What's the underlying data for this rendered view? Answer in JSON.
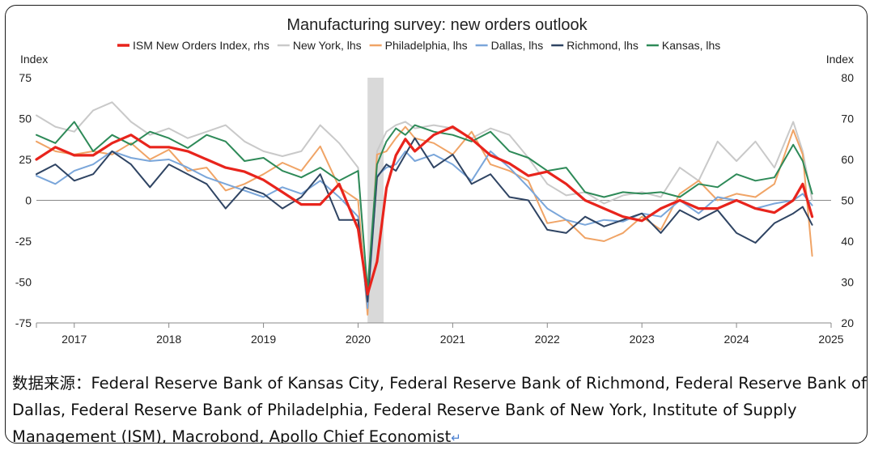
{
  "chart_data": {
    "type": "line",
    "title": "Manufacturing survey: new orders outlook",
    "left_axis": {
      "label": "Index",
      "range": [
        -75,
        75
      ],
      "ticks": [
        "75",
        "50",
        "25",
        "0",
        "-25",
        "-50",
        "-75"
      ],
      "tick_values": [
        75,
        50,
        25,
        0,
        -25,
        -50,
        -75
      ]
    },
    "right_axis": {
      "label": "Index",
      "range": [
        20,
        80
      ],
      "ticks": [
        "80",
        "70",
        "60",
        "50",
        "40",
        "30",
        "20"
      ],
      "tick_values": [
        80,
        70,
        60,
        50,
        40,
        30,
        20
      ]
    },
    "x_ticks": [
      "2017",
      "2018",
      "2019",
      "2020",
      "2021",
      "2022",
      "2023",
      "2024",
      "2025"
    ],
    "x_range": [
      2016.6,
      2025.0
    ],
    "recession_band": [
      2020.1,
      2020.27
    ],
    "grid": false,
    "zero_line": true,
    "legend": {
      "placement": "top"
    },
    "series": [
      {
        "name": "ISM New Orders Index, rhs",
        "axis": "right",
        "color": "#e8241c",
        "width": 3.2,
        "x": [
          2016.6,
          2016.8,
          2017.0,
          2017.2,
          2017.4,
          2017.6,
          2017.8,
          2018.0,
          2018.2,
          2018.4,
          2018.6,
          2018.8,
          2019.0,
          2019.2,
          2019.4,
          2019.6,
          2019.8,
          2020.0,
          2020.1,
          2020.2,
          2020.3,
          2020.4,
          2020.5,
          2020.6,
          2020.8,
          2021.0,
          2021.2,
          2021.4,
          2021.6,
          2021.8,
          2022.0,
          2022.2,
          2022.4,
          2022.6,
          2022.8,
          2023.0,
          2023.2,
          2023.4,
          2023.6,
          2023.8,
          2024.0,
          2024.2,
          2024.4,
          2024.6,
          2024.7,
          2024.8
        ],
        "y": [
          60,
          63,
          61,
          61,
          64,
          66,
          63,
          63,
          62,
          60,
          58,
          57,
          55,
          52,
          49,
          49,
          54,
          43,
          27,
          35,
          53,
          61,
          65,
          62,
          66,
          68,
          65,
          61,
          59,
          56,
          57,
          54,
          50,
          48,
          46,
          45,
          48,
          50,
          48,
          48,
          50,
          48,
          47,
          50,
          54,
          46
        ],
        "values_note": ""
      },
      {
        "name": "New York, lhs",
        "axis": "left",
        "color": "#c9c9c9",
        "width": 2,
        "x": [
          2016.6,
          2016.8,
          2017.0,
          2017.2,
          2017.4,
          2017.6,
          2017.8,
          2018.0,
          2018.2,
          2018.4,
          2018.6,
          2018.8,
          2019.0,
          2019.2,
          2019.4,
          2019.6,
          2019.8,
          2020.0,
          2020.1,
          2020.2,
          2020.3,
          2020.4,
          2020.5,
          2020.6,
          2020.8,
          2021.0,
          2021.2,
          2021.4,
          2021.6,
          2021.8,
          2022.0,
          2022.2,
          2022.4,
          2022.6,
          2022.8,
          2023.0,
          2023.2,
          2023.4,
          2023.6,
          2023.8,
          2024.0,
          2024.2,
          2024.4,
          2024.6,
          2024.7,
          2024.8
        ],
        "y": [
          52,
          45,
          42,
          55,
          60,
          48,
          40,
          44,
          38,
          42,
          46,
          36,
          30,
          27,
          30,
          46,
          35,
          20,
          -60,
          30,
          42,
          46,
          48,
          44,
          46,
          44,
          38,
          44,
          40,
          26,
          10,
          3,
          5,
          -2,
          3,
          5,
          2,
          20,
          12,
          36,
          24,
          36,
          20,
          48,
          30,
          0
        ]
      },
      {
        "name": "Philadelphia, lhs",
        "axis": "left",
        "color": "#f0a466",
        "width": 2,
        "x": [
          2016.6,
          2016.8,
          2017.0,
          2017.2,
          2017.4,
          2017.6,
          2017.8,
          2018.0,
          2018.2,
          2018.4,
          2018.6,
          2018.8,
          2019.0,
          2019.2,
          2019.4,
          2019.6,
          2019.8,
          2020.0,
          2020.1,
          2020.2,
          2020.3,
          2020.4,
          2020.5,
          2020.6,
          2020.8,
          2021.0,
          2021.2,
          2021.4,
          2021.6,
          2021.8,
          2022.0,
          2022.2,
          2022.4,
          2022.6,
          2022.8,
          2023.0,
          2023.2,
          2023.4,
          2023.6,
          2023.8,
          2024.0,
          2024.2,
          2024.4,
          2024.6,
          2024.7,
          2024.8
        ],
        "y": [
          36,
          30,
          28,
          30,
          28,
          35,
          25,
          31,
          18,
          20,
          6,
          10,
          16,
          23,
          18,
          33,
          8,
          0,
          -70,
          28,
          30,
          38,
          45,
          38,
          35,
          28,
          42,
          22,
          18,
          12,
          -14,
          -12,
          -23,
          -25,
          -20,
          -10,
          -18,
          4,
          12,
          0,
          4,
          2,
          10,
          43,
          28,
          -34
        ]
      },
      {
        "name": "Dallas, lhs",
        "axis": "left",
        "color": "#7aa6da",
        "width": 2,
        "x": [
          2016.6,
          2016.8,
          2017.0,
          2017.2,
          2017.4,
          2017.6,
          2017.8,
          2018.0,
          2018.2,
          2018.4,
          2018.6,
          2018.8,
          2019.0,
          2019.2,
          2019.4,
          2019.6,
          2019.8,
          2020.0,
          2020.1,
          2020.2,
          2020.3,
          2020.4,
          2020.5,
          2020.6,
          2020.8,
          2021.0,
          2021.2,
          2021.4,
          2021.6,
          2021.8,
          2022.0,
          2022.2,
          2022.4,
          2022.6,
          2022.8,
          2023.0,
          2023.2,
          2023.4,
          2023.6,
          2023.8,
          2024.0,
          2024.2,
          2024.4,
          2024.6,
          2024.7,
          2024.8
        ],
        "y": [
          15,
          10,
          18,
          22,
          30,
          26,
          24,
          25,
          20,
          14,
          10,
          6,
          2,
          8,
          4,
          12,
          2,
          -10,
          -66,
          15,
          20,
          22,
          30,
          24,
          28,
          22,
          12,
          30,
          20,
          8,
          -5,
          -12,
          -15,
          -12,
          -13,
          -8,
          -10,
          0,
          -8,
          2,
          0,
          -5,
          -2,
          0,
          4,
          -3
        ]
      },
      {
        "name": "Richmond, lhs",
        "axis": "left",
        "color": "#2f4463",
        "width": 2,
        "x": [
          2016.6,
          2016.8,
          2017.0,
          2017.2,
          2017.4,
          2017.6,
          2017.8,
          2018.0,
          2018.2,
          2018.4,
          2018.6,
          2018.8,
          2019.0,
          2019.2,
          2019.4,
          2019.6,
          2019.8,
          2020.0,
          2020.1,
          2020.2,
          2020.3,
          2020.4,
          2020.5,
          2020.6,
          2020.8,
          2021.0,
          2021.2,
          2021.4,
          2021.6,
          2021.8,
          2022.0,
          2022.2,
          2022.4,
          2022.6,
          2022.8,
          2023.0,
          2023.2,
          2023.4,
          2023.6,
          2023.8,
          2024.0,
          2024.2,
          2024.4,
          2024.6,
          2024.7,
          2024.8
        ],
        "y": [
          16,
          22,
          12,
          16,
          30,
          22,
          8,
          22,
          16,
          10,
          -5,
          8,
          4,
          -5,
          2,
          16,
          -12,
          -12,
          -62,
          14,
          22,
          18,
          28,
          38,
          20,
          28,
          10,
          16,
          2,
          0,
          -18,
          -20,
          -10,
          -16,
          -12,
          -8,
          -20,
          -6,
          -12,
          -6,
          -20,
          -26,
          -14,
          -8,
          -4,
          -15
        ]
      },
      {
        "name": "Kansas, lhs",
        "axis": "left",
        "color": "#2e8a58",
        "width": 2,
        "x": [
          2016.6,
          2016.8,
          2017.0,
          2017.2,
          2017.4,
          2017.6,
          2017.8,
          2018.0,
          2018.2,
          2018.4,
          2018.6,
          2018.8,
          2019.0,
          2019.2,
          2019.4,
          2019.6,
          2019.8,
          2020.0,
          2020.1,
          2020.2,
          2020.3,
          2020.4,
          2020.5,
          2020.6,
          2020.8,
          2021.0,
          2021.2,
          2021.4,
          2021.6,
          2021.8,
          2022.0,
          2022.2,
          2022.4,
          2022.6,
          2022.8,
          2023.0,
          2023.2,
          2023.4,
          2023.6,
          2023.8,
          2024.0,
          2024.2,
          2024.4,
          2024.6,
          2024.7,
          2024.8
        ],
        "y": [
          40,
          35,
          48,
          30,
          40,
          34,
          42,
          38,
          32,
          40,
          36,
          24,
          26,
          18,
          14,
          20,
          12,
          18,
          -55,
          22,
          36,
          44,
          40,
          46,
          42,
          40,
          36,
          42,
          30,
          26,
          18,
          20,
          5,
          2,
          5,
          4,
          5,
          2,
          10,
          8,
          16,
          12,
          14,
          34,
          24,
          4
        ]
      }
    ]
  },
  "footer": {
    "source_label": "数据来源：",
    "source_text": "Federal Reserve Bank of Kansas City, Federal Reserve Bank of Richmond, Federal Reserve Bank of Dallas, Federal Reserve Bank of Philadelphia, Federal Reserve Bank of New York, Institute of Supply Management (ISM), Macrobond, Apollo Chief Economist",
    "return_mark": "↵"
  }
}
